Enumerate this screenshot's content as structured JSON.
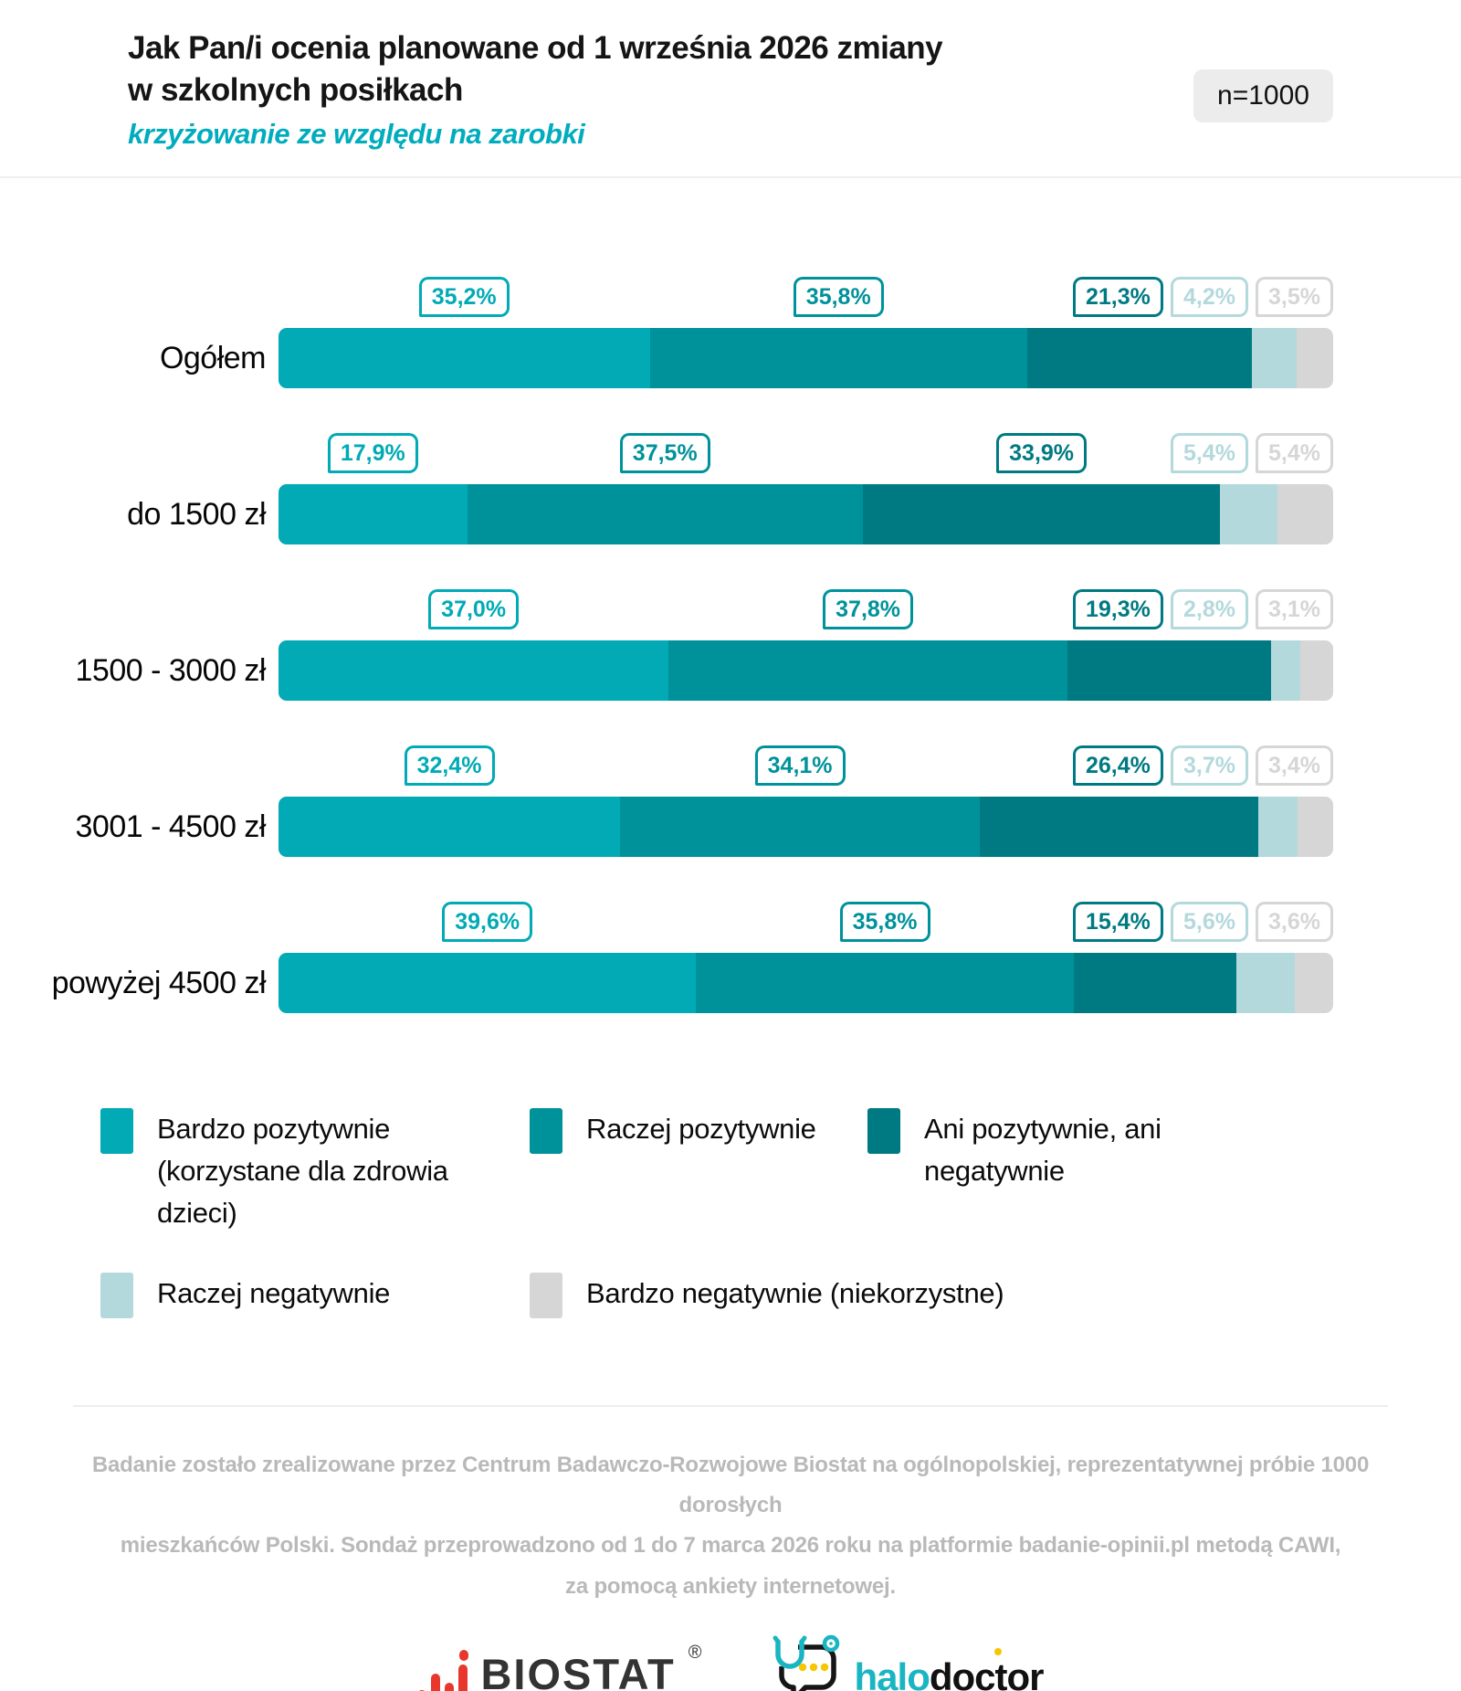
{
  "header": {
    "title_line1": "Jak Pan/i ocenia planowane od 1 września 2026 zmiany",
    "title_line2": "w szkolnych posiłkach",
    "subtitle": "krzyżowanie ze względu na zarobki",
    "sample_badge": "n=1000"
  },
  "chart_data": {
    "type": "bar",
    "orientation": "horizontal-stacked",
    "unit": "%",
    "value_format": "comma-decimal-percent",
    "title": "Jak Pan/i ocenia planowane od 1 września 2026 zmiany w szkolnych posiłkach",
    "subtitle": "krzyżowanie ze względu na zarobki",
    "categories": [
      "Ogółem",
      "do 1500 zł",
      "1500 - 3000 zł",
      "3001 - 4500 zł",
      "powyżej 4500 zł"
    ],
    "series": [
      {
        "name": "Bardzo pozytywnie (korzystane dla zdrowia dzieci)",
        "color": "#01aab5",
        "values": [
          35.2,
          17.9,
          37.0,
          32.4,
          39.6
        ]
      },
      {
        "name": "Raczej pozytywnie",
        "color": "#00929b",
        "values": [
          35.8,
          37.5,
          37.8,
          34.1,
          35.8
        ]
      },
      {
        "name": "Ani pozytywnie, ani negatywnie",
        "color": "#007a82",
        "values": [
          21.3,
          33.9,
          19.3,
          26.4,
          15.4
        ]
      },
      {
        "name": "Raczej negatywnie",
        "color": "#b4d9dc",
        "values": [
          4.2,
          5.4,
          2.8,
          3.7,
          5.6
        ]
      },
      {
        "name": "Bardzo negatywnie (niekorzystne)",
        "color": "#d6d6d6",
        "values": [
          3.5,
          5.4,
          3.1,
          3.4,
          3.6
        ]
      }
    ],
    "legend_position": "bottom"
  },
  "legend": {
    "items": [
      {
        "label": "Bardzo pozytywnie (korzystane dla zdrowia dzieci)",
        "color": "#01aab5"
      },
      {
        "label": "Raczej pozytywnie",
        "color": "#00929b"
      },
      {
        "label": "Ani pozytywnie, ani negatywnie",
        "color": "#007a82"
      },
      {
        "label": "Raczej negatywnie",
        "color": "#b4d9dc"
      },
      {
        "label": "Bardzo negatywnie (niekorzystne)",
        "color": "#d6d6d6"
      }
    ]
  },
  "footer": {
    "note": "Badanie zostało zrealizowane przez Centrum Badawczo-Rozwojowe Biostat na ogólnopolskiej, reprezentatywnej próbie 1000 dorosłych\nmieszkańców Polski. Sondaż przeprowadzono od 1 do 7 marca 2026 roku na platformie badanie-opinii.pl metodą CAWI,\nza pomocą ankiety internetowej."
  },
  "logos": {
    "biostat_text": "BIOSTAT",
    "biostat_reg": "®",
    "halodoctor_part1": "halo",
    "halodoctor_part2": "doctor"
  },
  "theme": {
    "accent": "#00acbd",
    "badge_bg": "#ececec",
    "footnote": "#b9b9b9",
    "text": "#111111",
    "biostat_red": "#e8382d",
    "halodoctor_teal": "#1ab5c3",
    "halodoctor_yellow": "#f6c700"
  }
}
